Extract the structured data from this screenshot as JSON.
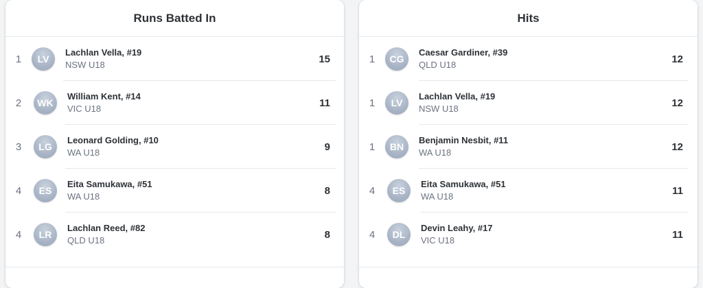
{
  "rbi": {
    "title": "Runs Batted In",
    "rows": [
      {
        "rank": "1",
        "initials": "LV",
        "name": "Lachlan Vella, #19",
        "team": "NSW U18",
        "value": "15"
      },
      {
        "rank": "2",
        "initials": "WK",
        "name": "William Kent, #14",
        "team": "VIC U18",
        "value": "11"
      },
      {
        "rank": "3",
        "initials": "LG",
        "name": "Leonard Golding, #10",
        "team": "WA U18",
        "value": "9"
      },
      {
        "rank": "4",
        "initials": "ES",
        "name": "Eita Samukawa, #51",
        "team": "WA U18",
        "value": "8"
      },
      {
        "rank": "4",
        "initials": "LR",
        "name": "Lachlan Reed, #82",
        "team": "QLD U18",
        "value": "8"
      }
    ]
  },
  "hits": {
    "title": "Hits",
    "rows": [
      {
        "rank": "1",
        "initials": "CG",
        "name": "Caesar Gardiner, #39",
        "team": "QLD U18",
        "value": "12"
      },
      {
        "rank": "1",
        "initials": "LV",
        "name": "Lachlan Vella, #19",
        "team": "NSW U18",
        "value": "12"
      },
      {
        "rank": "1",
        "initials": "BN",
        "name": "Benjamin Nesbit, #11",
        "team": "WA U18",
        "value": "12"
      },
      {
        "rank": "4",
        "initials": "ES",
        "name": "Eita Samukawa, #51",
        "team": "WA U18",
        "value": "11"
      },
      {
        "rank": "4",
        "initials": "DL",
        "name": "Devin Leahy, #17",
        "team": "VIC U18",
        "value": "11"
      }
    ]
  }
}
